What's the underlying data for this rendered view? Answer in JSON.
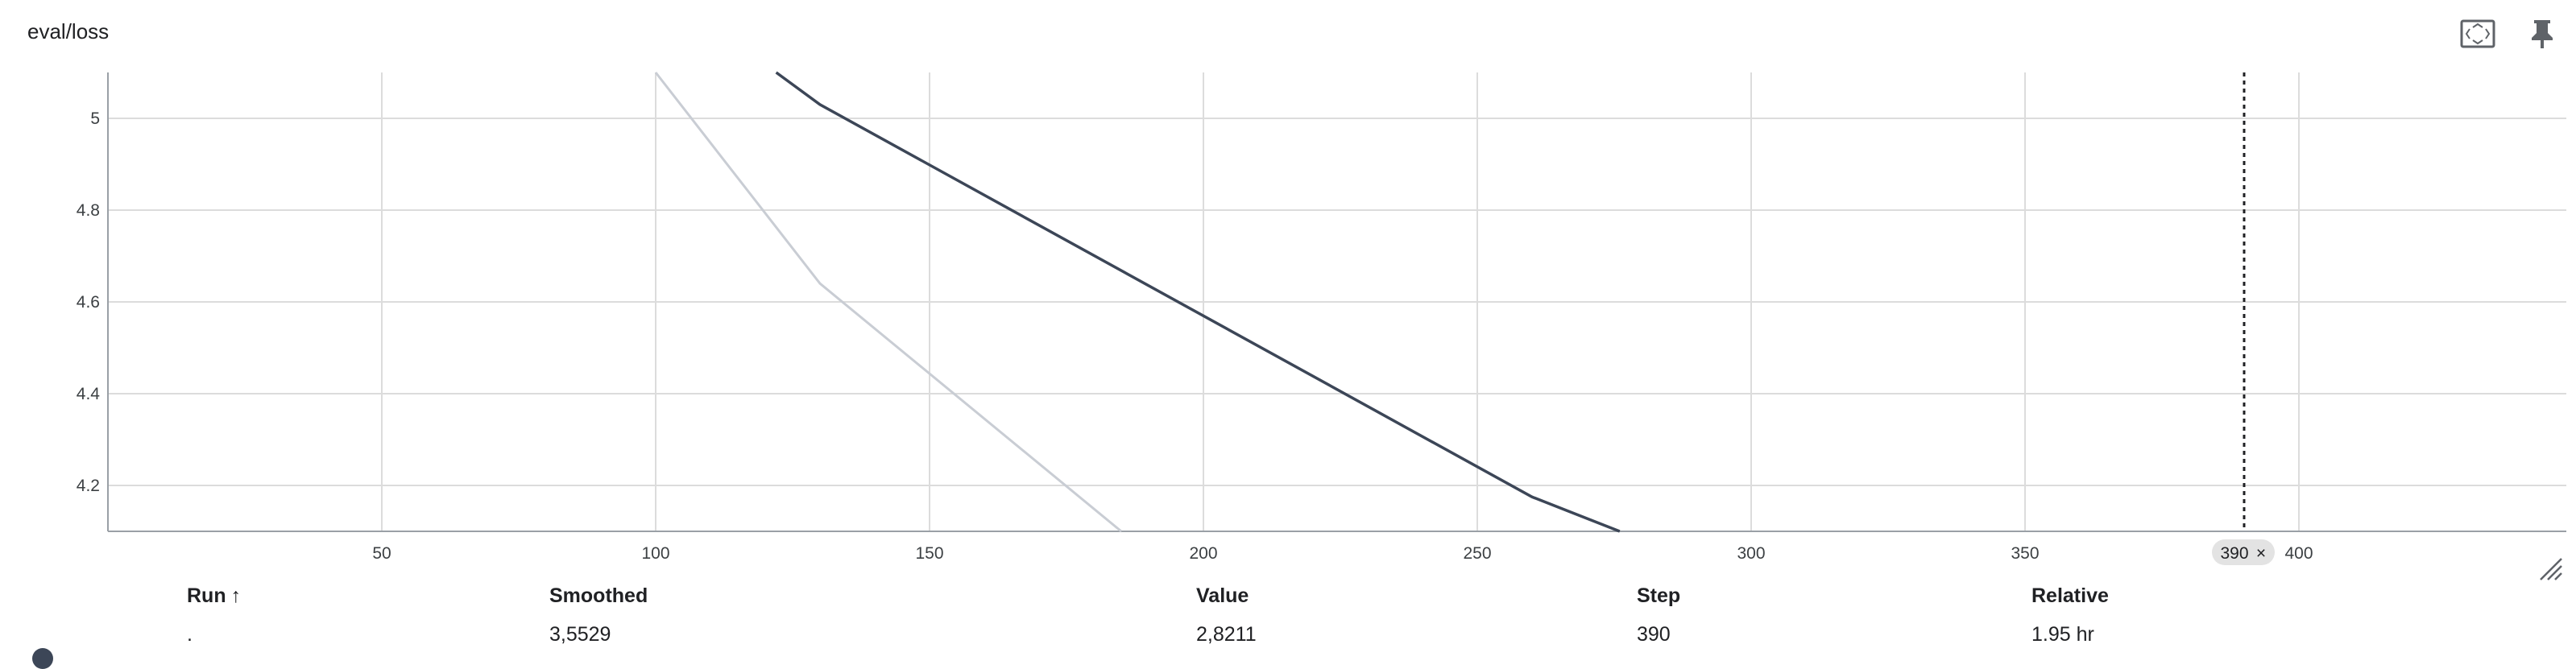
{
  "card": {
    "title": "eval/loss"
  },
  "toolbar": {
    "buttons": [
      {
        "name": "fit-domain-button",
        "icon": "fit-domain-icon"
      },
      {
        "name": "pin-button",
        "icon": "pin-icon"
      },
      {
        "name": "collapse-button",
        "icon": "collapse-icon"
      },
      {
        "name": "more-options-button",
        "icon": "more-vert-icon"
      }
    ]
  },
  "chart_data": {
    "type": "line",
    "title": "",
    "xlabel": "",
    "ylabel": "",
    "xlim": [
      0,
      450
    ],
    "ylim": [
      4.1,
      5.1
    ],
    "x_ticks": [
      50,
      100,
      150,
      200,
      250,
      300,
      350,
      400
    ],
    "y_ticks": [
      4.2,
      4.4,
      4.6,
      4.8,
      5
    ],
    "grid": true,
    "series": [
      {
        "role": "raw",
        "color": "#c9cdd4",
        "x": [
          100,
          130,
          185
        ],
        "y": [
          5.1,
          4.64,
          4.1
        ]
      },
      {
        "role": "smoothed",
        "color": "#3c4657",
        "x": [
          122,
          130,
          260,
          276
        ],
        "y": [
          5.1,
          5.03,
          4.175,
          4.1
        ]
      }
    ],
    "cursor": {
      "step": 390,
      "label": "390"
    }
  },
  "table": {
    "headers": {
      "run": "Run",
      "sort_indicator": "↑",
      "smoothed": "Smoothed",
      "value": "Value",
      "step": "Step",
      "relative": "Relative"
    },
    "rows": [
      {
        "run": ".",
        "smoothed": "3,5529",
        "value": "2,8211",
        "step": "390",
        "relative": "1.95 hr",
        "color": "#3c4657"
      }
    ]
  }
}
